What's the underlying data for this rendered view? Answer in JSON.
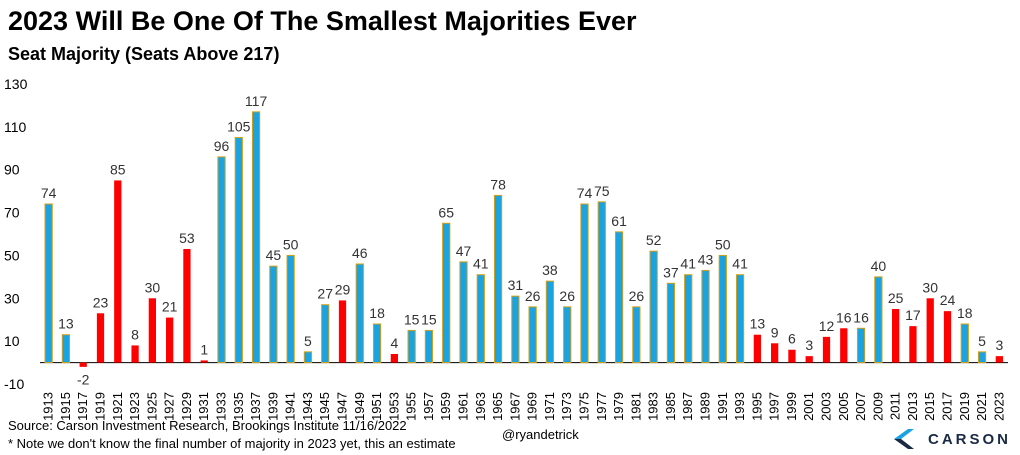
{
  "title": "2023 Will Be One Of The Smallest Majorities Ever",
  "subtitle": "Seat Majority (Seats Above 217)",
  "footer": {
    "source": "Source: Carson Investment Research, Brookings Institute 11/16/2022",
    "note": "* Note we don't know the final number of majority in 2023 yet, this an estimate",
    "handle": "@ryandetrick"
  },
  "logo": {
    "text": "CARSON",
    "icon": "carson-chevron-icon"
  },
  "colors": {
    "democrat": "#ff0000",
    "republican": "#1aa3e0",
    "bar_outline": "#d4a017"
  },
  "chart_data": {
    "type": "bar",
    "ylim": [
      -10,
      130
    ],
    "yticks": [
      -10,
      10,
      30,
      50,
      70,
      90,
      110,
      130
    ],
    "grid": false,
    "legend": "none",
    "categories": [
      "1913",
      "1915",
      "1917",
      "1919",
      "1921",
      "1923",
      "1925",
      "1927",
      "1929",
      "1931",
      "1933",
      "1935",
      "1937",
      "1939",
      "1941",
      "1943",
      "1945",
      "1947",
      "1949",
      "1951",
      "1953",
      "1955",
      "1957",
      "1959",
      "1961",
      "1963",
      "1965",
      "1967",
      "1969",
      "1971",
      "1973",
      "1975",
      "1977",
      "1979",
      "1981",
      "1983",
      "1985",
      "1987",
      "1989",
      "1991",
      "1993",
      "1995",
      "1997",
      "1999",
      "2001",
      "2003",
      "2005",
      "2007",
      "2009",
      "2011",
      "2013",
      "2015",
      "2017",
      "2019",
      "2021",
      "2023"
    ],
    "values": [
      74,
      13,
      -2,
      23,
      85,
      8,
      30,
      21,
      53,
      1,
      96,
      105,
      117,
      45,
      50,
      5,
      27,
      29,
      46,
      18,
      4,
      15,
      15,
      65,
      47,
      41,
      78,
      31,
      26,
      38,
      26,
      74,
      75,
      61,
      26,
      52,
      37,
      41,
      43,
      50,
      41,
      13,
      9,
      6,
      3,
      12,
      16,
      16,
      40,
      25,
      17,
      30,
      24,
      18,
      5,
      3
    ],
    "party": [
      "D",
      "D",
      "R",
      "R",
      "R",
      "R",
      "R",
      "R",
      "R",
      "R",
      "D",
      "D",
      "D",
      "D",
      "D",
      "D",
      "D",
      "R",
      "D",
      "D",
      "R",
      "D",
      "D",
      "D",
      "D",
      "D",
      "D",
      "D",
      "D",
      "D",
      "D",
      "D",
      "D",
      "D",
      "D",
      "D",
      "D",
      "D",
      "D",
      "D",
      "D",
      "R",
      "R",
      "R",
      "R",
      "R",
      "R",
      "D",
      "D",
      "R",
      "R",
      "R",
      "R",
      "D",
      "D",
      "R"
    ]
  }
}
